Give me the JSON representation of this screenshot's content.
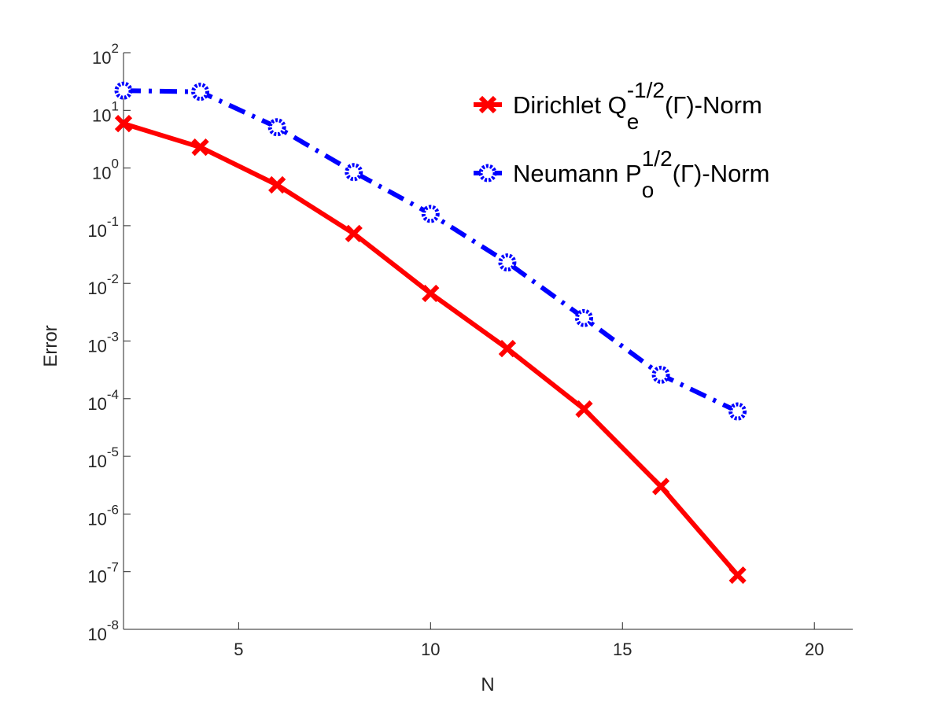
{
  "chart_data": {
    "type": "line",
    "xlabel": "N",
    "ylabel": "Error",
    "x": [
      2,
      4,
      6,
      8,
      10,
      12,
      14,
      16,
      18
    ],
    "series": [
      {
        "name": "Dirichlet Q",
        "name_sub": "e",
        "name_sup": "-1/2",
        "name_tail": "(Γ)-Norm",
        "color": "#ff0000",
        "line_style": "solid",
        "marker": "x",
        "values": [
          5.9,
          2.3,
          0.51,
          0.073,
          0.0067,
          0.00074,
          6.6e-05,
          3e-06,
          8.7e-08
        ]
      },
      {
        "name": "Neumann P",
        "name_sub": "o",
        "name_sup": "1/2",
        "name_tail": "(Γ)-Norm",
        "color": "#0000ff",
        "line_style": "dashdot",
        "marker": "o",
        "values": [
          22,
          21,
          5.1,
          0.85,
          0.16,
          0.023,
          0.0025,
          0.00026,
          6e-05
        ]
      }
    ],
    "xlim": [
      2,
      21
    ],
    "xticks": [
      5,
      10,
      15,
      20
    ],
    "ylim": [
      1e-08,
      100
    ],
    "log_y": true,
    "yticks": [
      {
        "value": 1e-08,
        "label": "10",
        "exponent": "-8"
      },
      {
        "value": 1e-07,
        "label": "10",
        "exponent": "-7"
      },
      {
        "value": 1e-06,
        "label": "10",
        "exponent": "-6"
      },
      {
        "value": 1e-05,
        "label": "10",
        "exponent": "-5"
      },
      {
        "value": 0.0001,
        "label": "10",
        "exponent": "-4"
      },
      {
        "value": 0.001,
        "label": "10",
        "exponent": "-3"
      },
      {
        "value": 0.01,
        "label": "10",
        "exponent": "-2"
      },
      {
        "value": 0.1,
        "label": "10",
        "exponent": "-1"
      },
      {
        "value": 1,
        "label": "10",
        "exponent": "0"
      },
      {
        "value": 10,
        "label": "10",
        "exponent": "1"
      },
      {
        "value": 100,
        "label": "10",
        "exponent": "2"
      }
    ],
    "legend": "northeast",
    "grid": false
  }
}
